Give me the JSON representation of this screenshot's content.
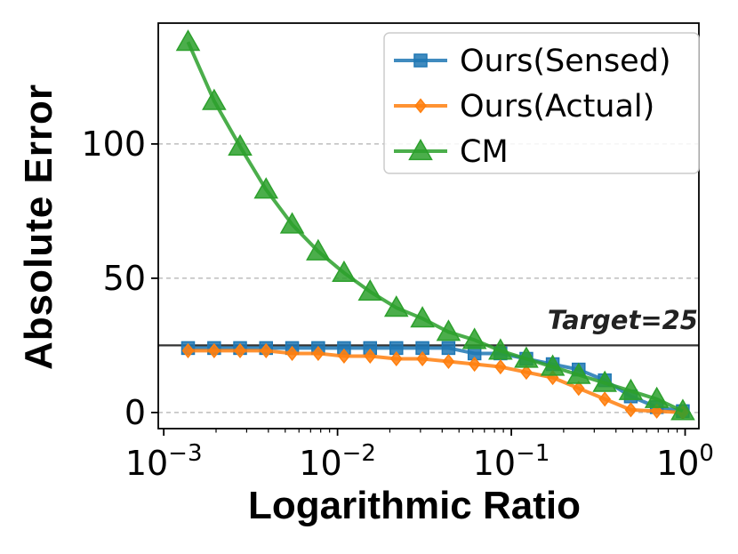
{
  "chart_data": {
    "type": "line",
    "title": "",
    "xlabel": "Logarithmic Ratio",
    "ylabel": "Absolute Error",
    "xscale": "log",
    "xlim": [
      0.00093,
      1.2
    ],
    "ylim": [
      -6,
      145
    ],
    "xticks": [
      {
        "value": 0.001,
        "base": "10",
        "exp": "−3"
      },
      {
        "value": 0.01,
        "base": "10",
        "exp": "−2"
      },
      {
        "value": 0.1,
        "base": "10",
        "exp": "−1"
      },
      {
        "value": 1,
        "base": "10",
        "exp": "0"
      }
    ],
    "yticks": [
      {
        "value": 0,
        "label": "0"
      },
      {
        "value": 50,
        "label": "50"
      },
      {
        "value": 100,
        "label": "100"
      }
    ],
    "grid": "horizontal dashed",
    "x": [
      0.00138,
      0.00195,
      0.00275,
      0.00388,
      0.00548,
      0.00774,
      0.0109,
      0.0154,
      0.0218,
      0.0308,
      0.0435,
      0.0614,
      0.0866,
      0.122,
      0.173,
      0.244,
      0.345,
      0.487,
      0.687,
      0.97
    ],
    "series": [
      {
        "name": "Ours(Sensed)",
        "color": "#1f77b4",
        "marker": "square",
        "values": [
          24,
          24,
          24,
          24,
          24,
          24,
          24,
          24,
          24,
          24,
          24,
          22,
          22,
          20,
          18,
          16,
          12,
          6,
          2,
          0.5
        ]
      },
      {
        "name": "Ours(Actual)",
        "color": "#ff7f0e",
        "marker": "diamond",
        "values": [
          23,
          23,
          23,
          23,
          22,
          22,
          21,
          21,
          20,
          20,
          19,
          18,
          17,
          15,
          13,
          9,
          5,
          1,
          0.5,
          0
        ]
      },
      {
        "name": "CM",
        "color": "#2ca02c",
        "marker": "triangle",
        "values": [
          138,
          116,
          99,
          83,
          70,
          60,
          52,
          45,
          39,
          35,
          30,
          27,
          23,
          20,
          17,
          14,
          11,
          8,
          5,
          0.5
        ]
      }
    ],
    "reference_line": {
      "value": 25,
      "label": "Target=25",
      "color": "#333333"
    },
    "legend": {
      "position": "top-right",
      "entries": [
        "Ours(Sensed)",
        "Ours(Actual)",
        "CM"
      ]
    }
  }
}
